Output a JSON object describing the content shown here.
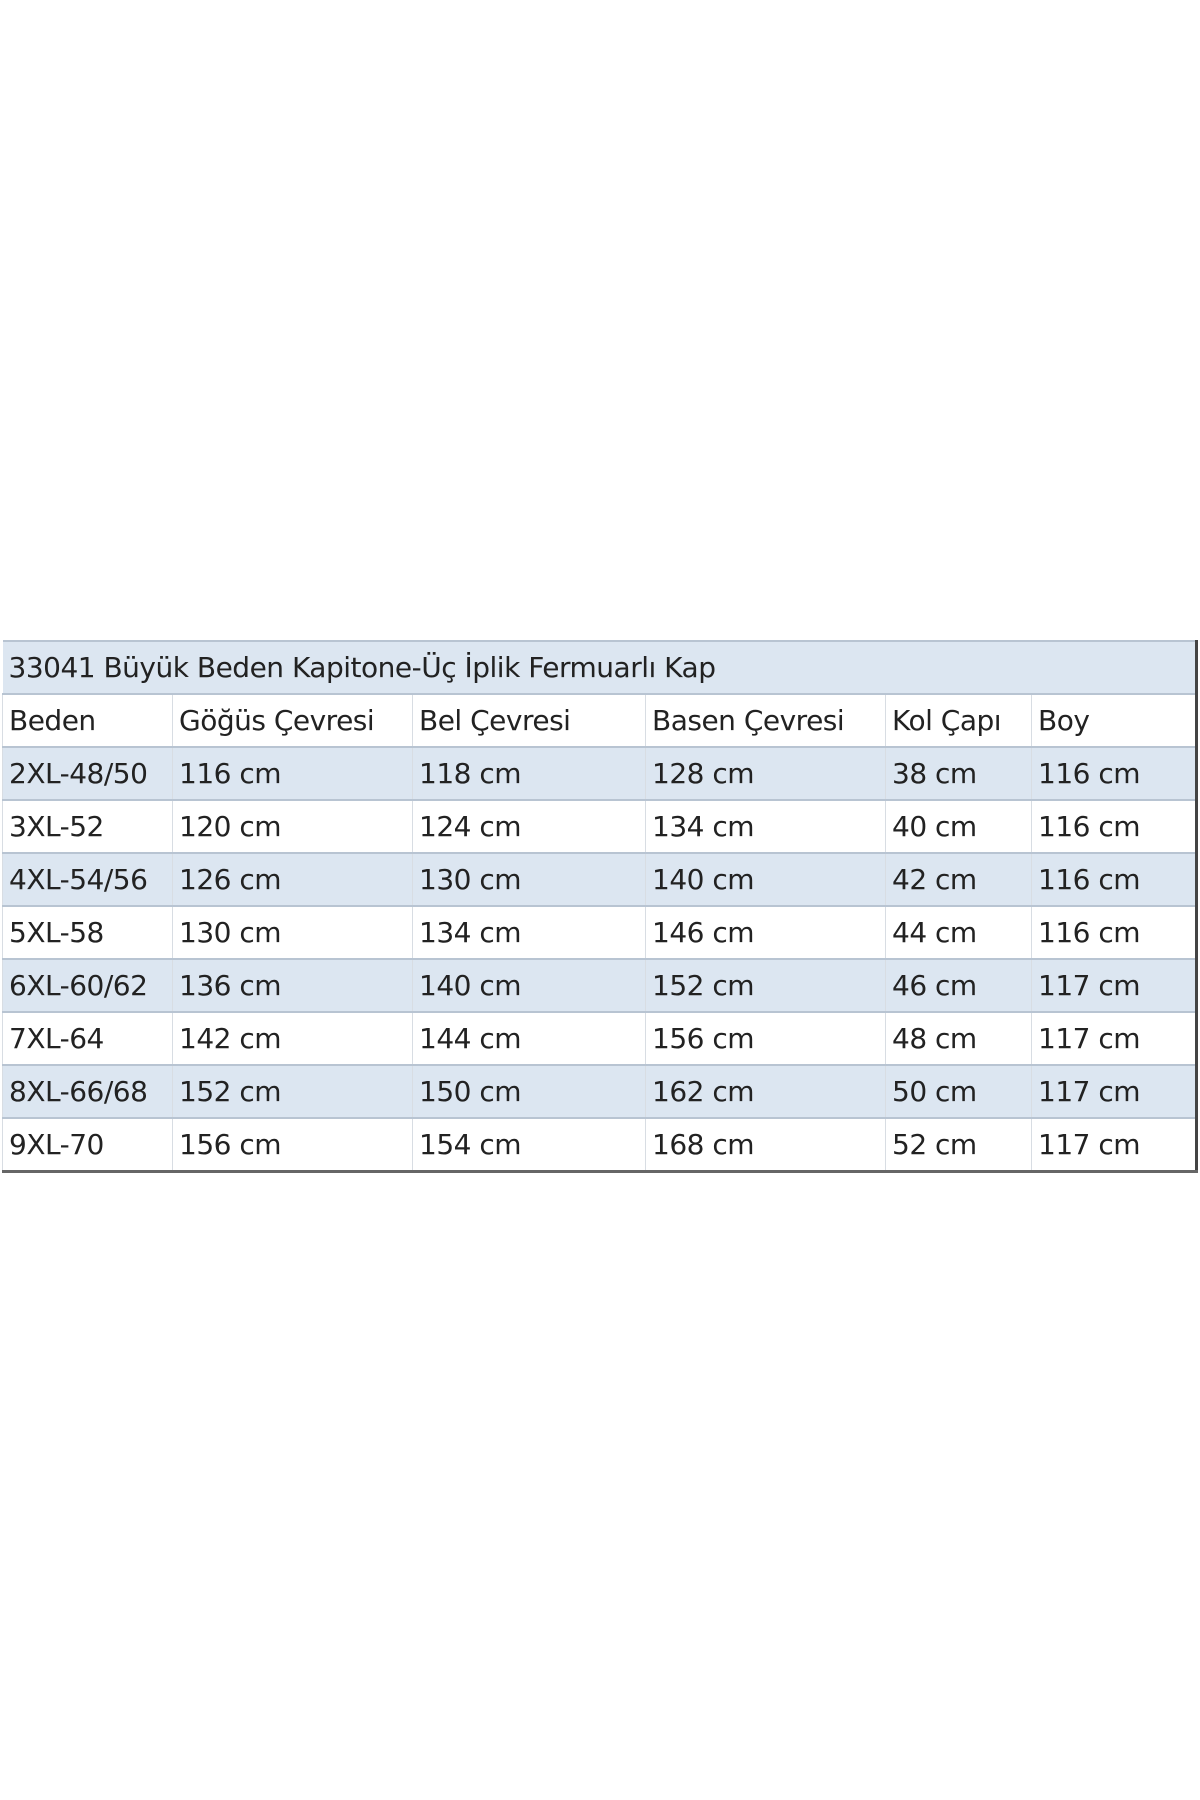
{
  "title": "33041 Büyük Beden Kapitone-Üç İplik Fermuarlı Kap",
  "headers": [
    "Beden",
    "Göğüs Çevresi",
    "Bel Çevresi",
    "Basen Çevresi",
    "Kol Çapı",
    "Boy"
  ],
  "rows": [
    [
      "2XL-48/50",
      "116 cm",
      "118 cm",
      "128 cm",
      "38 cm",
      "116 cm"
    ],
    [
      "3XL-52",
      "120 cm",
      "124 cm",
      "134 cm",
      "40 cm",
      "116 cm"
    ],
    [
      "4XL-54/56",
      "126 cm",
      "130 cm",
      "140 cm",
      "42 cm",
      "116 cm"
    ],
    [
      "5XL-58",
      "130 cm",
      "134 cm",
      "146 cm",
      "44 cm",
      "116 cm"
    ],
    [
      "6XL-60/62",
      "136 cm",
      "140 cm",
      "152 cm",
      "46 cm",
      "117 cm"
    ],
    [
      "7XL-64",
      "142 cm",
      "144 cm",
      "156 cm",
      "48 cm",
      "117 cm"
    ],
    [
      "8XL-66/68",
      "152 cm",
      "150 cm",
      "162 cm",
      "50 cm",
      "117 cm"
    ],
    [
      "9XL-70",
      "156 cm",
      "154 cm",
      "168 cm",
      "52 cm",
      "117 cm"
    ]
  ],
  "colors": {
    "band": "#dce6f1",
    "text": "#222222"
  }
}
